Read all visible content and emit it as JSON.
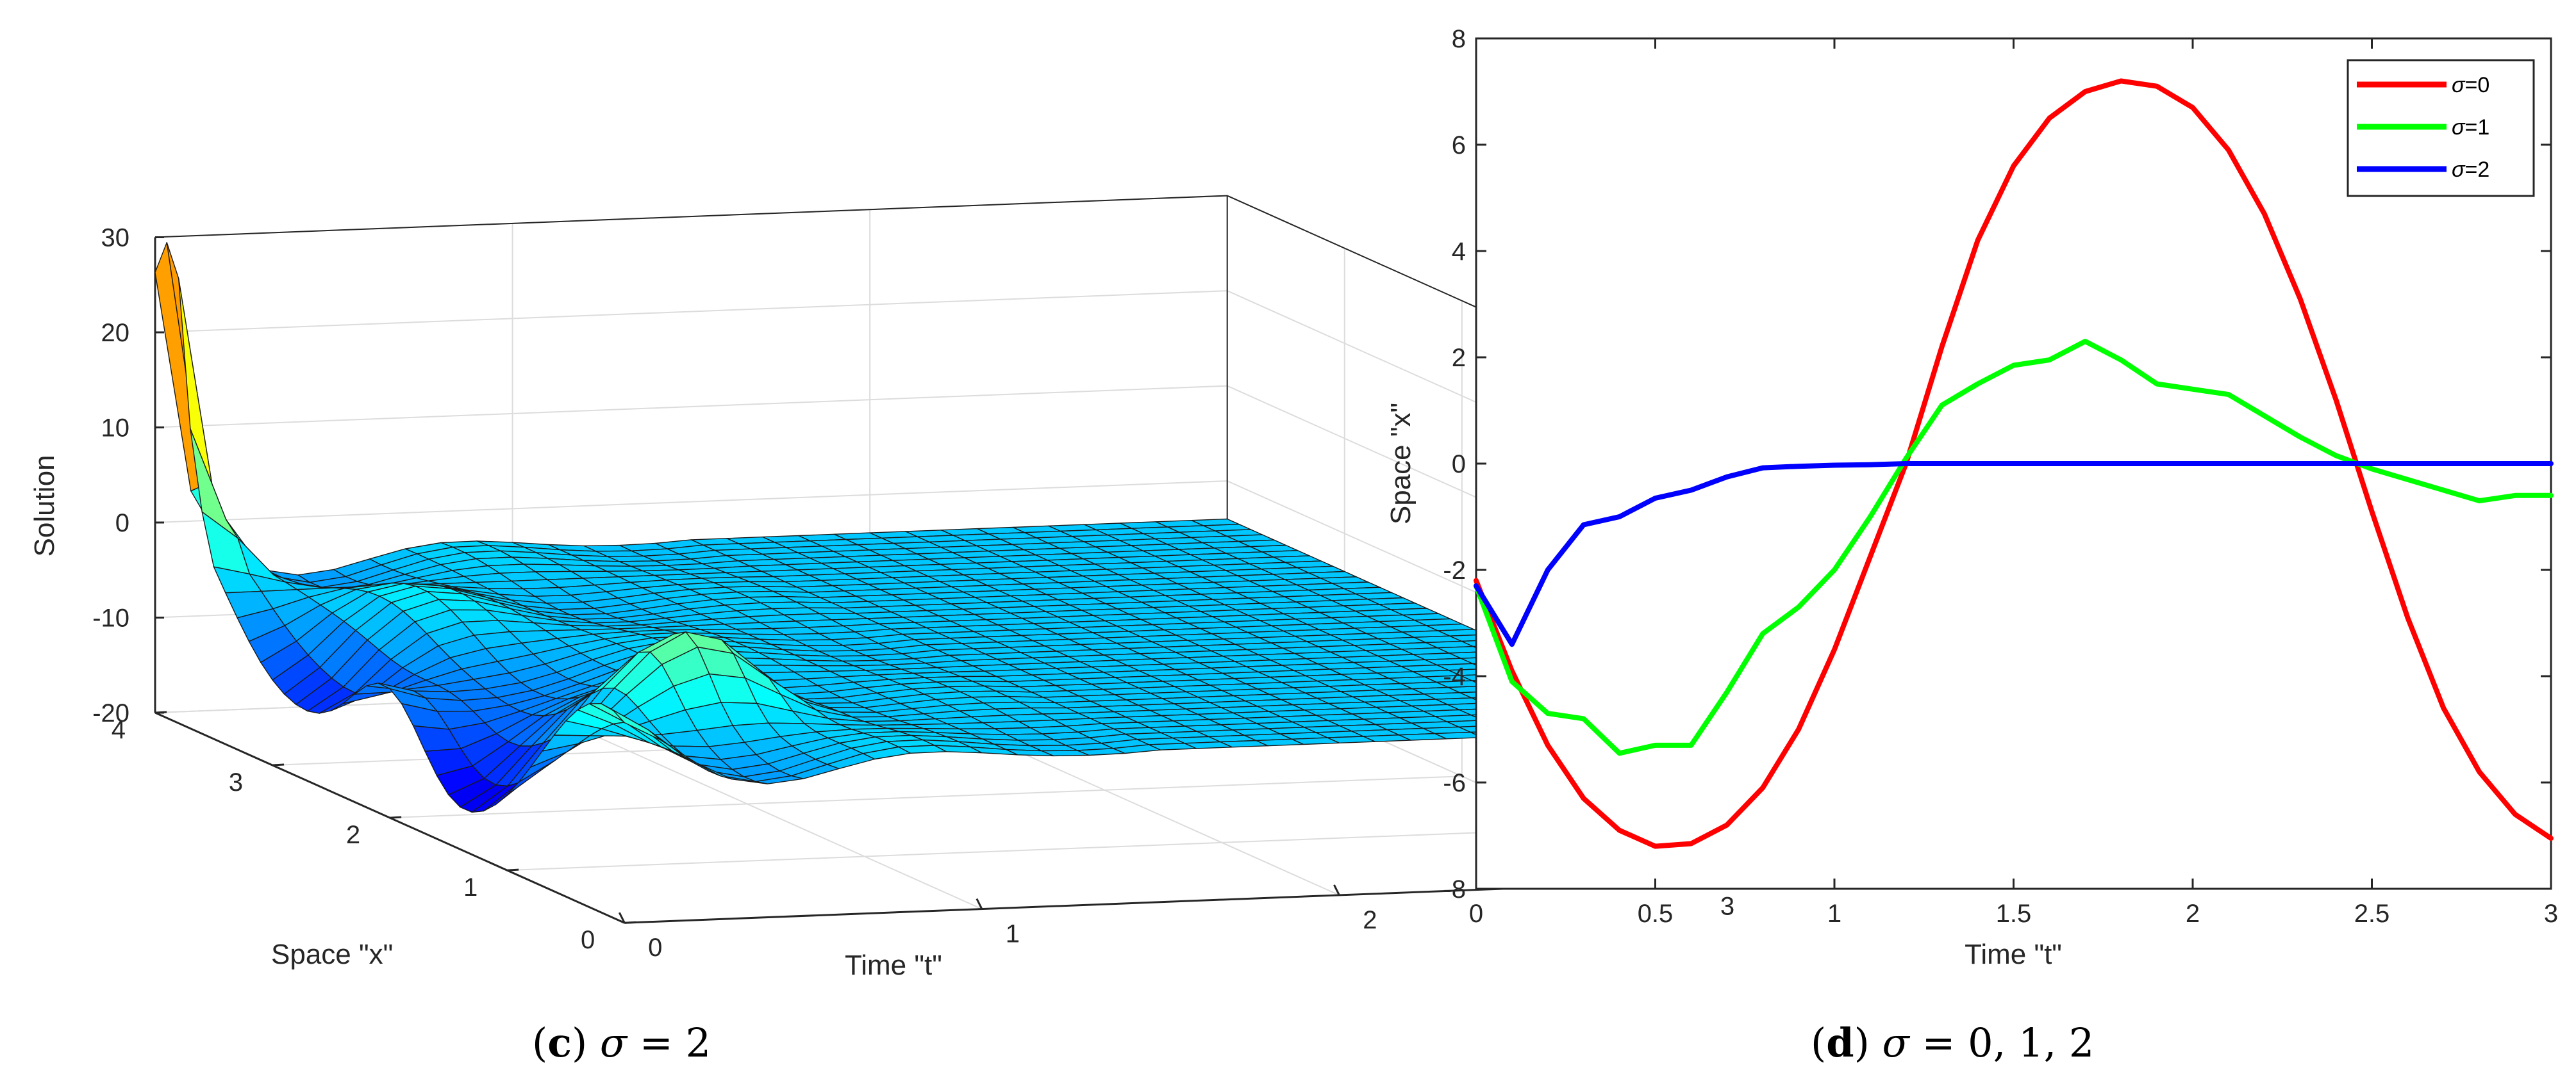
{
  "chart_data": [
    {
      "type": "surface",
      "panel_caption": {
        "letter": "c",
        "sigma_symbol": "σ",
        "value_text": " = 2"
      },
      "xlabel": "Time \"t\"",
      "ylabel": "Space \"x\"",
      "zlabel": "Solution",
      "t_range": [
        0,
        3
      ],
      "x_range": [
        0,
        4
      ],
      "z_range": [
        -20,
        30
      ],
      "t_ticks": [
        "0",
        "1",
        "2",
        "3"
      ],
      "x_ticks": [
        "0",
        "1",
        "2",
        "3",
        "4"
      ],
      "z_ticks": [
        "-20",
        "-10",
        "0",
        "10",
        "20",
        "30"
      ],
      "grid": true,
      "colormap": "jet",
      "features": {
        "peak_value": 28,
        "peak_x": 3.9,
        "peak_t": 0,
        "trough_value": -20,
        "plateau_value": -4
      }
    },
    {
      "type": "line",
      "panel_caption": {
        "letter": "d",
        "sigma_symbol": "σ",
        "value_text": " = 0, 1, 2"
      },
      "xlabel": "Time \"t\"",
      "ylabel": "Space \"x\"",
      "xlim": [
        0,
        3
      ],
      "ylim": [
        -8,
        8
      ],
      "x_ticks": [
        "0",
        "0.5",
        "1",
        "1.5",
        "2",
        "2.5",
        "3"
      ],
      "y_ticks": [
        "-8",
        "-6",
        "-4",
        "-2",
        "0",
        "2",
        "4",
        "6",
        "8"
      ],
      "legend_position": "top-right",
      "x": [
        0,
        0.1,
        0.2,
        0.3,
        0.4,
        0.5,
        0.6,
        0.7,
        0.8,
        0.9,
        1.0,
        1.1,
        1.2,
        1.3,
        1.4,
        1.5,
        1.6,
        1.7,
        1.8,
        1.9,
        2.0,
        2.1,
        2.2,
        2.3,
        2.4,
        2.5,
        2.6,
        2.7,
        2.8,
        2.9,
        3.0
      ],
      "series": [
        {
          "name": "σ=0",
          "sym": "σ",
          "label_tail": "=0",
          "color": "#ff0000",
          "values": [
            -2.2,
            -3.9,
            -5.3,
            -6.3,
            -6.9,
            -7.2,
            -7.15,
            -6.8,
            -6.1,
            -5.0,
            -3.5,
            -1.75,
            0.0,
            2.2,
            4.2,
            5.6,
            6.5,
            7.0,
            7.2,
            7.1,
            6.7,
            5.9,
            4.7,
            3.1,
            1.2,
            -0.9,
            -2.9,
            -4.6,
            -5.8,
            -6.6,
            -7.05
          ]
        },
        {
          "name": "σ=1",
          "sym": "σ",
          "label_tail": "=1",
          "color": "#00ff00",
          "values": [
            -2.3,
            -4.1,
            -4.7,
            -4.8,
            -5.45,
            -5.3,
            -5.3,
            -4.3,
            -3.2,
            -2.7,
            -2.0,
            -1.0,
            0.1,
            1.1,
            1.5,
            1.85,
            1.95,
            2.3,
            1.95,
            1.5,
            1.4,
            1.3,
            0.9,
            0.5,
            0.15,
            -0.1,
            -0.3,
            -0.5,
            -0.7,
            -0.6,
            -0.6
          ]
        },
        {
          "name": "σ=2",
          "sym": "σ",
          "label_tail": "=2",
          "color": "#0000ff",
          "values": [
            -2.3,
            -3.4,
            -2.0,
            -1.15,
            -1.0,
            -0.65,
            -0.5,
            -0.25,
            -0.08,
            -0.05,
            -0.03,
            -0.02,
            0.0,
            0.0,
            0.0,
            0.0,
            0.0,
            0.0,
            0.0,
            0.0,
            0.0,
            0.0,
            0.0,
            0.0,
            0.0,
            0.0,
            0.0,
            0.0,
            0.0,
            0.0,
            0.0
          ]
        }
      ]
    }
  ]
}
